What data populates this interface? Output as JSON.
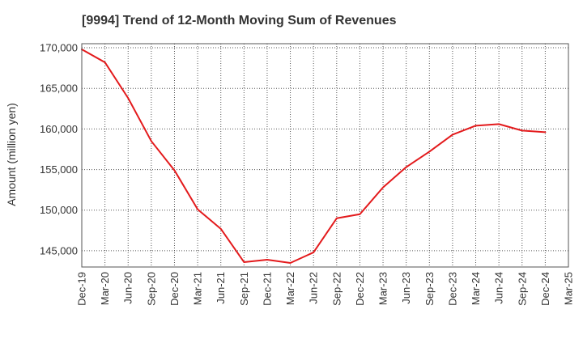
{
  "chart_data": {
    "type": "line",
    "title": "[9994]  Trend of 12-Month Moving Sum of Revenues",
    "xlabel": "",
    "ylabel": "Amount (million yen)",
    "x_ticks": [
      "Dec-19",
      "Mar-20",
      "Jun-20",
      "Sep-20",
      "Dec-20",
      "Mar-21",
      "Jun-21",
      "Sep-21",
      "Dec-21",
      "Mar-22",
      "Jun-22",
      "Sep-22",
      "Dec-22",
      "Mar-23",
      "Jun-23",
      "Sep-23",
      "Dec-23",
      "Mar-24",
      "Jun-24",
      "Sep-24",
      "Dec-24",
      "Mar-25"
    ],
    "y_ticks": [
      "145,000",
      "150,000",
      "155,000",
      "160,000",
      "165,000",
      "170,000"
    ],
    "y_tick_values": [
      145000,
      150000,
      155000,
      160000,
      165000,
      170000
    ],
    "ylim": [
      143000,
      170500
    ],
    "grid": true,
    "series": [
      {
        "color": "#e31a1c",
        "x": [
          "Dec-19",
          "Mar-20",
          "Jun-20",
          "Sep-20",
          "Dec-20",
          "Mar-21",
          "Jun-21",
          "Sep-21",
          "Dec-21",
          "Mar-22",
          "Jun-22",
          "Sep-22",
          "Dec-22",
          "Mar-23",
          "Jun-23",
          "Sep-23",
          "Dec-23",
          "Mar-24",
          "Jun-24",
          "Sep-24",
          "Dec-24"
        ],
        "values": [
          169800,
          168200,
          163800,
          158500,
          154900,
          150100,
          147700,
          143600,
          143900,
          143500,
          144800,
          149000,
          149500,
          152800,
          155300,
          157200,
          159300,
          160400,
          160600,
          159800,
          159600
        ]
      }
    ]
  }
}
